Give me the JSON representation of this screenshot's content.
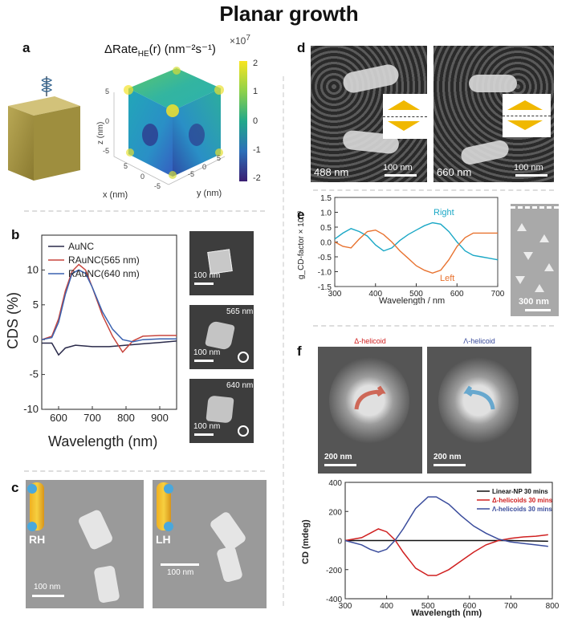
{
  "page_title": "Planar growth",
  "panels": {
    "a": {
      "label": "a",
      "title_main": "ΔRate",
      "title_sub": "HE",
      "title_rest": "(r) (nm⁻²s⁻¹)",
      "exponent_base": "×10",
      "exponent_power": "7",
      "colorbar_ticks": [
        "2",
        "1",
        "0",
        "-1",
        "-2"
      ],
      "z_label": "z (nm)",
      "x_label": "x (nm)",
      "y_label": "y (nm)",
      "z_ticks": [
        "5",
        "0",
        "-5"
      ],
      "x_ticks": [
        "5",
        "0",
        "-5"
      ],
      "y_ticks": [
        "-5",
        "0",
        "5"
      ]
    },
    "b": {
      "label": "b",
      "ylabel": "CDS (%)",
      "xlabel": "Wavelength (nm)",
      "y_ticks": [
        "10",
        "5",
        "0",
        "-5",
        "-10"
      ],
      "x_ticks": [
        "600",
        "700",
        "800",
        "900"
      ],
      "legend": [
        "AuNC",
        "RAuNC(565 nm)",
        "RAuNC(640 nm)"
      ],
      "sem_images": [
        {
          "caption": "",
          "scale": "100 nm"
        },
        {
          "caption": "565 nm",
          "scale": "100 nm"
        },
        {
          "caption": "640 nm",
          "scale": "100 nm"
        }
      ]
    },
    "c": {
      "label": "c",
      "left": {
        "tag": "RH",
        "scale": "100 nm"
      },
      "right": {
        "tag": "LH",
        "scale": "100 nm"
      }
    },
    "d": {
      "label": "d",
      "left_caption": "488 nm",
      "left_scale": "100 nm",
      "right_caption": "660 nm",
      "right_scale": "100 nm"
    },
    "e": {
      "label": "e",
      "ylabel": "g_CD-factor × 10⁻³",
      "xlabel": "Wavelength / nm",
      "y_ticks": [
        "1.5",
        "1.0",
        "0.5",
        "0.0",
        "-0.5",
        "-1.0",
        "-1.5"
      ],
      "x_ticks": [
        "300",
        "400",
        "500",
        "600",
        "700"
      ],
      "series_right": "Right",
      "series_left": "Left",
      "sem_scale": "300 nm"
    },
    "f": {
      "label": "f",
      "left_title": "Δ-helicoid",
      "right_title": "Λ-helicoid",
      "left_scale": "200 nm",
      "right_scale": "200 nm",
      "ylabel": "CD (mdeg)",
      "xlabel": "Wavelength (nm)",
      "y_ticks": [
        "400",
        "200",
        "0",
        "-200",
        "-400"
      ],
      "x_ticks": [
        "300",
        "400",
        "500",
        "600",
        "700",
        "800"
      ],
      "legend": [
        "Linear-NP 30 mins",
        "Δ-helicoids 30 mins",
        "Λ-helicoids 30 mins"
      ]
    }
  },
  "colors": {
    "b_auNC": "#2a2a4a",
    "b_565": "#c8463e",
    "b_640": "#3a62b0",
    "e_right": "#1ba8c6",
    "e_left": "#e8722f",
    "f_linear": "#111111",
    "f_delta": "#d02020",
    "f_lambda": "#3a4c9c"
  },
  "chart_data": [
    {
      "type": "line",
      "panel": "b",
      "xlabel": "Wavelength (nm)",
      "ylabel": "CDS (%)",
      "xlim": [
        550,
        950
      ],
      "ylim": [
        -10,
        15
      ],
      "series": [
        {
          "name": "AuNC",
          "x": [
            550,
            580,
            600,
            620,
            650,
            700,
            750,
            800,
            850,
            900,
            950
          ],
          "y": [
            -0.5,
            -0.5,
            -2.2,
            -1.2,
            -0.8,
            -1.0,
            -1.0,
            -0.8,
            -0.6,
            -0.4,
            -0.2
          ]
        },
        {
          "name": "RAuNC(565 nm)",
          "x": [
            550,
            580,
            600,
            620,
            640,
            660,
            680,
            700,
            730,
            760,
            790,
            820,
            850,
            900,
            950
          ],
          "y": [
            0,
            0.5,
            3,
            7,
            9.8,
            10.8,
            10,
            7.5,
            3.5,
            0.5,
            -1.8,
            -0.2,
            0.5,
            0.6,
            0.6
          ]
        },
        {
          "name": "RAuNC(640 nm)",
          "x": [
            550,
            580,
            600,
            620,
            640,
            660,
            680,
            700,
            730,
            760,
            790,
            820,
            850,
            900,
            950
          ],
          "y": [
            0,
            0.3,
            2.5,
            6.5,
            9.5,
            10.0,
            9.5,
            7.5,
            4,
            1.5,
            0,
            -0.3,
            0,
            0.1,
            0.1
          ]
        }
      ]
    },
    {
      "type": "line",
      "panel": "e",
      "xlabel": "Wavelength / nm",
      "ylabel": "g_CD-factor × 10⁻³",
      "xlim": [
        300,
        700
      ],
      "ylim": [
        -1.5,
        1.5
      ],
      "series": [
        {
          "name": "Right",
          "x": [
            300,
            320,
            340,
            360,
            380,
            400,
            420,
            440,
            460,
            480,
            500,
            520,
            540,
            560,
            580,
            600,
            620,
            640,
            660,
            680,
            700
          ],
          "y": [
            0.1,
            0.3,
            0.45,
            0.35,
            0.2,
            -0.1,
            -0.3,
            -0.2,
            0.05,
            0.25,
            0.4,
            0.55,
            0.65,
            0.6,
            0.35,
            0.0,
            -0.3,
            -0.45,
            -0.5,
            -0.55,
            -0.6
          ]
        },
        {
          "name": "Left",
          "x": [
            300,
            320,
            340,
            360,
            380,
            400,
            420,
            440,
            460,
            480,
            500,
            520,
            540,
            560,
            580,
            600,
            620,
            640,
            660,
            680,
            700
          ],
          "y": [
            0.0,
            -0.15,
            -0.2,
            0.1,
            0.35,
            0.4,
            0.25,
            0.0,
            -0.3,
            -0.55,
            -0.8,
            -0.95,
            -1.05,
            -0.95,
            -0.6,
            -0.15,
            0.15,
            0.3,
            0.3,
            0.3,
            0.3
          ]
        }
      ]
    },
    {
      "type": "line",
      "panel": "f",
      "xlabel": "Wavelength (nm)",
      "ylabel": "CD (mdeg)",
      "xlim": [
        300,
        800
      ],
      "ylim": [
        -400,
        400
      ],
      "series": [
        {
          "name": "Linear-NP 30 mins",
          "x": [
            300,
            400,
            500,
            600,
            700,
            790
          ],
          "y": [
            0,
            0,
            0,
            0,
            0,
            -5
          ]
        },
        {
          "name": "Δ-helicoids 30 mins",
          "x": [
            300,
            340,
            360,
            380,
            400,
            420,
            440,
            470,
            500,
            520,
            550,
            580,
            610,
            640,
            670,
            700,
            730,
            760,
            790
          ],
          "y": [
            0,
            20,
            50,
            80,
            60,
            5,
            -80,
            -190,
            -240,
            -240,
            -200,
            -140,
            -80,
            -30,
            0,
            15,
            25,
            30,
            40
          ]
        },
        {
          "name": "Λ-helicoids 30 mins",
          "x": [
            300,
            340,
            360,
            380,
            400,
            420,
            440,
            470,
            500,
            520,
            550,
            580,
            610,
            640,
            670,
            700,
            730,
            760,
            790
          ],
          "y": [
            0,
            -30,
            -60,
            -80,
            -60,
            0,
            80,
            220,
            300,
            300,
            250,
            170,
            100,
            50,
            10,
            -10,
            -20,
            -30,
            -40
          ]
        }
      ]
    }
  ]
}
